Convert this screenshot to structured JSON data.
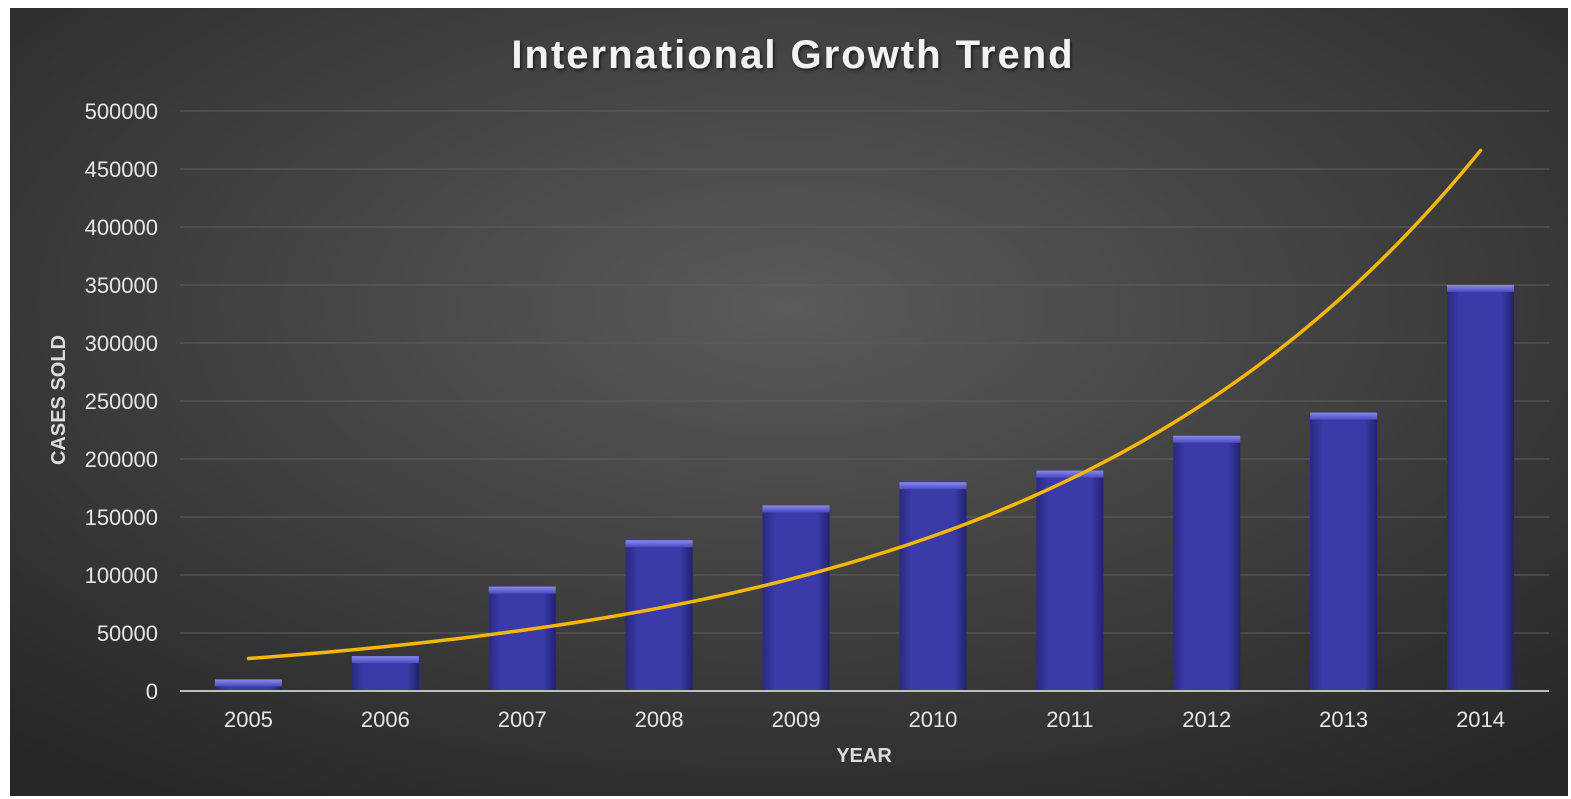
{
  "chart_data": {
    "type": "bar",
    "title": "International Growth Trend",
    "xlabel": "YEAR",
    "ylabel": "CASES SOLD",
    "categories": [
      "2005",
      "2006",
      "2007",
      "2008",
      "2009",
      "2010",
      "2011",
      "2012",
      "2013",
      "2014"
    ],
    "series": [
      {
        "type": "bar",
        "values": [
          10000,
          30000,
          90000,
          130000,
          160000,
          180000,
          190000,
          220000,
          240000,
          350000
        ]
      },
      {
        "type": "line",
        "trendline": "exponential",
        "values": [
          28000,
          38000,
          51000,
          70000,
          96000,
          131000,
          181000,
          249000,
          341000,
          466000
        ]
      }
    ],
    "ylim": [
      0,
      500000
    ],
    "yticks": [
      "0",
      "50000",
      "100000",
      "150000",
      "200000",
      "250000",
      "300000",
      "350000",
      "400000",
      "450000",
      "500000"
    ],
    "grid": true,
    "legend": "none",
    "colors": {
      "bar": "#3a3aa8",
      "bar_top": "#7272e6",
      "trend": "#f5b70a",
      "background_center": "#5a5a5a",
      "background_edge": "#262626",
      "frame": "#ffffff",
      "gridline": "#5e5e5e",
      "axis_line": "#bdbdbd",
      "title_text": "#f2f2f2",
      "tick_text": "#e6e6e6",
      "axis_title_text": "#dcdcdc"
    }
  }
}
